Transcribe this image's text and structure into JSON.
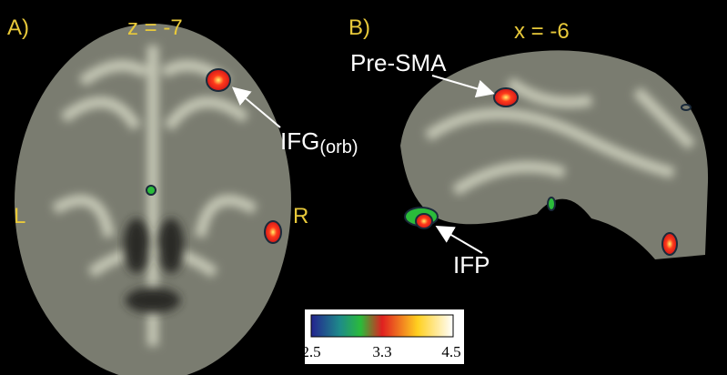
{
  "panels": [
    {
      "label": "A)",
      "coordinate": "z = -7",
      "left_label": "L",
      "right_label": "R",
      "annotations": [
        {
          "text": "IFG",
          "subscript": "(orb)"
        }
      ]
    },
    {
      "label": "B)",
      "coordinate": "x = -6",
      "annotations": [
        {
          "text": "Pre-SMA"
        },
        {
          "text": "IFP"
        }
      ]
    }
  ],
  "colorbar": {
    "ticks": [
      "2.5",
      "3.3",
      "4.5"
    ]
  }
}
